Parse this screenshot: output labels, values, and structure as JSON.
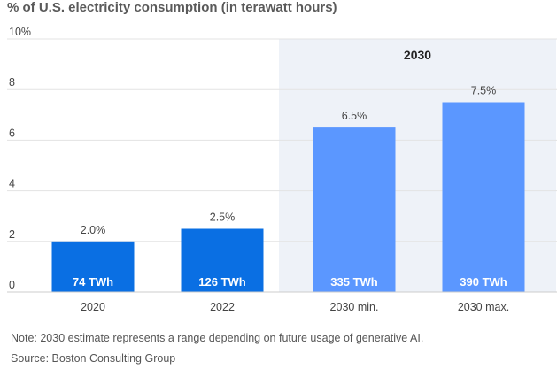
{
  "title": "% of U.S. electricity consumption (in terawatt hours)",
  "note": "Note: 2030 estimate represents a range depending on future usage of generative AI.",
  "source": "Source: Boston Consulting Group",
  "colors": {
    "bar_actual": "#0a6fe3",
    "bar_projection": "#5b97ff",
    "highlight_bg": "#eef2f8",
    "grid": "#e3e3e3"
  },
  "chart_data": {
    "type": "bar",
    "categories": [
      "2020",
      "2022",
      "2030 min.",
      "2030 max."
    ],
    "values": [
      2.0,
      2.5,
      6.5,
      7.5
    ],
    "value_labels": [
      "2.0%",
      "2.5%",
      "6.5%",
      "7.5%"
    ],
    "inner_labels": [
      "74 TWh",
      "126 TWh",
      "335 TWh",
      "390 TWh"
    ],
    "projection": [
      false,
      false,
      true,
      true
    ],
    "highlight_label": "2030",
    "y_ticks": [
      "0",
      "2",
      "4",
      "6",
      "8",
      "10%"
    ],
    "ylim": [
      0,
      10
    ],
    "grid": true
  }
}
